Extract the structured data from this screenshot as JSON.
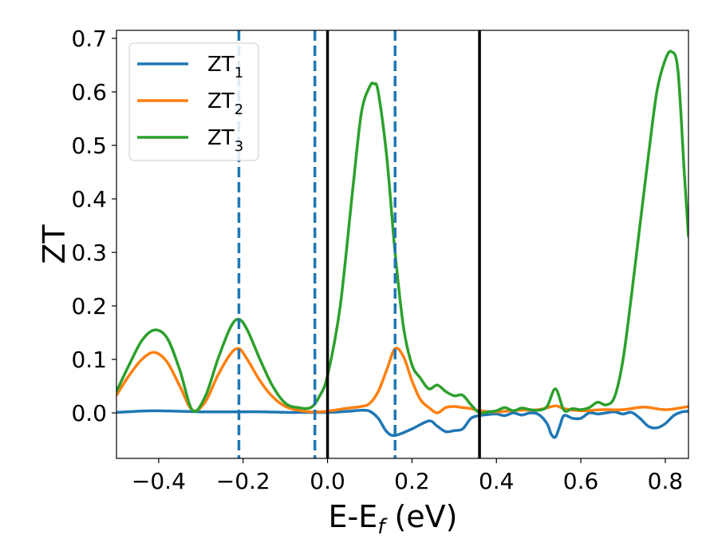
{
  "chart_data": {
    "type": "line",
    "title": "",
    "xlabel_main": "E-E",
    "xlabel_sub": "f",
    "xlabel_tail": " (eV)",
    "ylabel": "ZT",
    "xlim": [
      -0.5,
      0.855
    ],
    "ylim": [
      -0.085,
      0.715
    ],
    "grid": false,
    "legend_position": "top-left",
    "xticks": [
      -0.4,
      -0.2,
      0.0,
      0.2,
      0.4,
      0.6,
      0.8
    ],
    "xtick_labels": [
      "−0.4",
      "−0.2",
      "0.0",
      "0.2",
      "0.4",
      "0.6",
      "0.8"
    ],
    "yticks": [
      0.0,
      0.1,
      0.2,
      0.3,
      0.4,
      0.5,
      0.6,
      0.7
    ],
    "ytick_labels": [
      "0.0",
      "0.1",
      "0.2",
      "0.3",
      "0.4",
      "0.5",
      "0.6",
      "0.7"
    ],
    "vlines": [
      {
        "x": -0.21,
        "style": "dashed",
        "color": "#1f77b4"
      },
      {
        "x": -0.03,
        "style": "dashed",
        "color": "#1f77b4"
      },
      {
        "x": 0.0,
        "style": "solid",
        "color": "#000000"
      },
      {
        "x": 0.16,
        "style": "dashed",
        "color": "#1f77b4"
      },
      {
        "x": 0.36,
        "style": "solid",
        "color": "#000000"
      }
    ],
    "series": [
      {
        "name": "ZT",
        "subscript": "1",
        "color": "#1f77b4",
        "x": [
          -0.5,
          -0.45,
          -0.41,
          -0.35,
          -0.3,
          -0.25,
          -0.2,
          -0.15,
          -0.1,
          -0.05,
          0.0,
          0.05,
          0.08,
          0.1,
          0.12,
          0.14,
          0.16,
          0.2,
          0.24,
          0.26,
          0.28,
          0.3,
          0.32,
          0.34,
          0.36,
          0.38,
          0.4,
          0.42,
          0.44,
          0.46,
          0.48,
          0.5,
          0.52,
          0.53,
          0.54,
          0.55,
          0.56,
          0.58,
          0.6,
          0.62,
          0.64,
          0.66,
          0.68,
          0.7,
          0.72,
          0.74,
          0.76,
          0.78,
          0.8,
          0.82,
          0.84,
          0.855
        ],
        "y": [
          0.001,
          0.003,
          0.004,
          0.003,
          0.002,
          0.002,
          0.002,
          0.002,
          0.001,
          0.001,
          0.001,
          0.003,
          0.005,
          0.003,
          -0.01,
          -0.035,
          -0.042,
          -0.03,
          -0.015,
          -0.025,
          -0.035,
          -0.033,
          -0.03,
          -0.01,
          -0.005,
          -0.003,
          -0.002,
          -0.005,
          0.0,
          -0.004,
          0.0,
          -0.003,
          -0.02,
          -0.04,
          -0.045,
          -0.025,
          -0.005,
          -0.01,
          -0.01,
          0.0,
          -0.002,
          0.0,
          0.002,
          -0.002,
          0.001,
          -0.01,
          -0.025,
          -0.028,
          -0.02,
          -0.005,
          0.002,
          0.003
        ]
      },
      {
        "name": "ZT",
        "subscript": "2",
        "color": "#ff7f0e",
        "x": [
          -0.5,
          -0.47,
          -0.44,
          -0.41,
          -0.38,
          -0.35,
          -0.32,
          -0.29,
          -0.26,
          -0.23,
          -0.21,
          -0.19,
          -0.16,
          -0.13,
          -0.1,
          -0.07,
          -0.04,
          -0.02,
          0.0,
          0.04,
          0.08,
          0.1,
          0.12,
          0.14,
          0.16,
          0.18,
          0.2,
          0.22,
          0.24,
          0.26,
          0.28,
          0.3,
          0.32,
          0.34,
          0.36,
          0.4,
          0.45,
          0.5,
          0.54,
          0.56,
          0.6,
          0.65,
          0.7,
          0.75,
          0.8,
          0.855
        ],
        "y": [
          0.033,
          0.07,
          0.1,
          0.113,
          0.095,
          0.05,
          0.005,
          0.02,
          0.07,
          0.11,
          0.12,
          0.1,
          0.06,
          0.03,
          0.012,
          0.005,
          0.002,
          0.002,
          0.003,
          0.008,
          0.012,
          0.018,
          0.04,
          0.08,
          0.12,
          0.105,
          0.06,
          0.025,
          0.01,
          0.0,
          0.01,
          0.012,
          0.01,
          0.008,
          0.004,
          0.002,
          0.005,
          0.006,
          0.013,
          0.008,
          0.004,
          0.006,
          0.006,
          0.011,
          0.006,
          0.012
        ]
      },
      {
        "name": "ZT",
        "subscript": "3",
        "color": "#2ca02c",
        "x": [
          -0.5,
          -0.47,
          -0.44,
          -0.41,
          -0.38,
          -0.35,
          -0.32,
          -0.29,
          -0.26,
          -0.23,
          -0.21,
          -0.19,
          -0.16,
          -0.13,
          -0.1,
          -0.07,
          -0.04,
          -0.02,
          0.0,
          0.03,
          0.06,
          0.08,
          0.1,
          0.11,
          0.12,
          0.14,
          0.16,
          0.18,
          0.2,
          0.22,
          0.24,
          0.26,
          0.28,
          0.3,
          0.32,
          0.34,
          0.36,
          0.38,
          0.4,
          0.42,
          0.44,
          0.46,
          0.48,
          0.5,
          0.52,
          0.54,
          0.56,
          0.58,
          0.6,
          0.62,
          0.64,
          0.66,
          0.68,
          0.7,
          0.72,
          0.74,
          0.76,
          0.78,
          0.8,
          0.815,
          0.83,
          0.845,
          0.855
        ],
        "y": [
          0.04,
          0.09,
          0.135,
          0.155,
          0.14,
          0.08,
          0.005,
          0.03,
          0.1,
          0.16,
          0.175,
          0.155,
          0.1,
          0.05,
          0.018,
          0.01,
          0.01,
          0.03,
          0.07,
          0.2,
          0.42,
          0.56,
          0.61,
          0.615,
          0.6,
          0.48,
          0.3,
          0.16,
          0.09,
          0.065,
          0.045,
          0.052,
          0.04,
          0.032,
          0.033,
          0.015,
          0.0,
          0.002,
          0.004,
          0.01,
          0.004,
          0.009,
          0.006,
          0.005,
          0.012,
          0.045,
          0.005,
          0.008,
          0.006,
          0.01,
          0.02,
          0.015,
          0.03,
          0.1,
          0.22,
          0.35,
          0.48,
          0.6,
          0.66,
          0.675,
          0.64,
          0.45,
          0.33
        ]
      }
    ]
  }
}
